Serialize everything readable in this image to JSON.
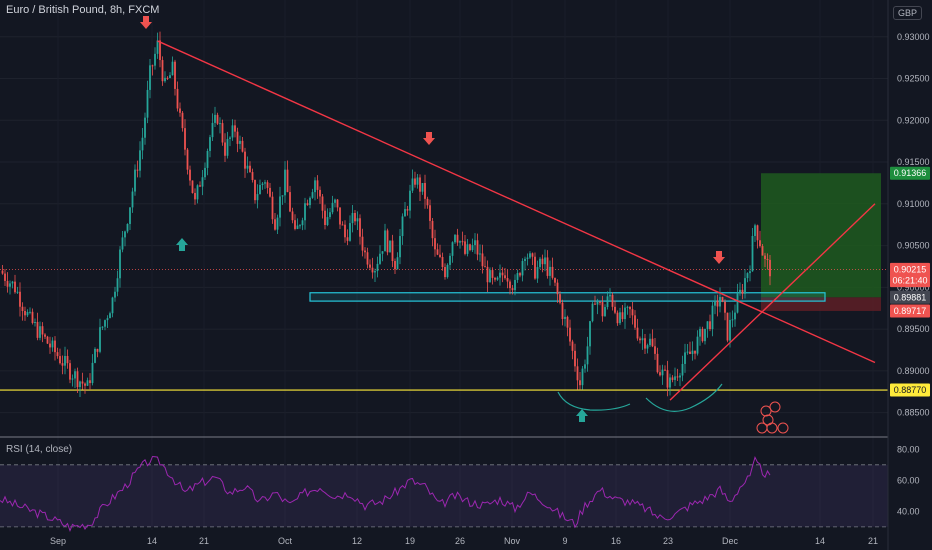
{
  "header": {
    "title": "Euro / British Pound, 8h, FXCM",
    "currency": "GBP"
  },
  "rsi_label": "RSI (14, close)",
  "colors": {
    "background": "#131722",
    "up": "#26a69a",
    "down": "#ef5350",
    "trendline": "#f23645",
    "support": "#ffeb3b",
    "zone": "#26c6da",
    "rsi": "#9c27b0",
    "target_box": "#1e5a1e",
    "stop_box": "#5a1e26"
  },
  "chart_data": {
    "type": "candlestick",
    "y_ticks": [
      "0.93000",
      "0.92500",
      "0.92000",
      "0.91500",
      "0.91000",
      "0.90500",
      "0.90000",
      "0.89500",
      "0.89000",
      "0.88500"
    ],
    "x_ticks": [
      "Sep",
      "14",
      "21",
      "Oct",
      "12",
      "19",
      "26",
      "Nov",
      "9",
      "16",
      "23",
      "Dec",
      "14",
      "21"
    ],
    "ylim": [
      0.8822,
      0.9344
    ],
    "price_labels": [
      {
        "text": "0.91366",
        "value": 0.91366,
        "color": "#1e8e3e"
      },
      {
        "text": "0.90215",
        "value": 0.90215,
        "color": "#ef5350"
      },
      {
        "text": "06:21:40",
        "value": 0.9008,
        "color": "#ef5350"
      },
      {
        "text": "0.89881",
        "value": 0.89881,
        "color": "#434651"
      },
      {
        "text": "0.89717",
        "value": 0.89717,
        "color": "#ef5350"
      },
      {
        "text": "0.88770",
        "value": 0.8877,
        "color": "#ffeb3b"
      }
    ],
    "series": [
      {
        "name": "price",
        "close_path": [
          [
            0,
            0.902
          ],
          [
            6,
            0.9
          ],
          [
            12,
            0.896
          ],
          [
            20,
            0.893
          ],
          [
            28,
            0.89
          ],
          [
            35,
            0.888
          ],
          [
            40,
            0.8945
          ],
          [
            45,
            0.8985
          ],
          [
            48,
            0.904
          ],
          [
            52,
            0.91
          ],
          [
            57,
            0.918
          ],
          [
            60,
            0.9255
          ],
          [
            63,
            0.929
          ],
          [
            66,
            0.924
          ],
          [
            69,
            0.926
          ],
          [
            72,
            0.92
          ],
          [
            75,
            0.915
          ],
          [
            78,
            0.91
          ],
          [
            81,
            0.914
          ],
          [
            84,
            0.918
          ],
          [
            87,
            0.9205
          ],
          [
            90,
            0.9165
          ],
          [
            94,
            0.919
          ],
          [
            98,
            0.915
          ],
          [
            102,
            0.911
          ],
          [
            106,
            0.913
          ],
          [
            110,
            0.908
          ],
          [
            114,
            0.913
          ],
          [
            118,
            0.906
          ],
          [
            122,
            0.91
          ],
          [
            126,
            0.913
          ],
          [
            130,
            0.908
          ],
          [
            134,
            0.91
          ],
          [
            138,
            0.906
          ],
          [
            142,
            0.9085
          ],
          [
            146,
            0.904
          ],
          [
            150,
            0.9025
          ],
          [
            154,
            0.906
          ],
          [
            158,
            0.903
          ],
          [
            162,
            0.909
          ],
          [
            166,
            0.913
          ],
          [
            170,
            0.911
          ],
          [
            174,
            0.904
          ],
          [
            178,
            0.902
          ],
          [
            182,
            0.907
          ],
          [
            186,
            0.904
          ],
          [
            190,
            0.905
          ],
          [
            194,
            0.902
          ],
          [
            198,
            0.9
          ],
          [
            202,
            0.902
          ],
          [
            206,
            0.9
          ],
          [
            210,
            0.9045
          ],
          [
            214,
            0.902
          ],
          [
            218,
            0.903
          ],
          [
            222,
            0.9
          ],
          [
            226,
            0.896
          ],
          [
            230,
            0.891
          ],
          [
            232,
            0.8885
          ],
          [
            235,
            0.893
          ],
          [
            238,
            0.899
          ],
          [
            241,
            0.897
          ],
          [
            244,
            0.899
          ],
          [
            248,
            0.896
          ],
          [
            252,
            0.897
          ],
          [
            256,
            0.894
          ],
          [
            260,
            0.8935
          ],
          [
            264,
            0.89
          ],
          [
            268,
            0.8885
          ],
          [
            272,
            0.8905
          ],
          [
            276,
            0.892
          ],
          [
            280,
            0.894
          ],
          [
            284,
            0.896
          ],
          [
            288,
            0.899
          ],
          [
            291,
            0.8945
          ],
          [
            294,
            0.8975
          ],
          [
            297,
            0.9
          ],
          [
            300,
            0.903
          ],
          [
            302,
            0.9075
          ],
          [
            304,
            0.9055
          ],
          [
            306,
            0.903
          ],
          [
            308,
            0.9022
          ]
        ]
      },
      {
        "name": "RSI",
        "values_path": [
          [
            0,
            48
          ],
          [
            10,
            42
          ],
          [
            20,
            36
          ],
          [
            28,
            30
          ],
          [
            36,
            32
          ],
          [
            42,
            44
          ],
          [
            50,
            56
          ],
          [
            56,
            68
          ],
          [
            60,
            73
          ],
          [
            64,
            72
          ],
          [
            68,
            64
          ],
          [
            74,
            52
          ],
          [
            80,
            58
          ],
          [
            86,
            62
          ],
          [
            92,
            52
          ],
          [
            98,
            56
          ],
          [
            104,
            46
          ],
          [
            110,
            52
          ],
          [
            116,
            44
          ],
          [
            122,
            52
          ],
          [
            128,
            56
          ],
          [
            134,
            50
          ],
          [
            140,
            52
          ],
          [
            146,
            44
          ],
          [
            152,
            46
          ],
          [
            158,
            52
          ],
          [
            164,
            60
          ],
          [
            170,
            56
          ],
          [
            176,
            44
          ],
          [
            182,
            50
          ],
          [
            188,
            46
          ],
          [
            194,
            44
          ],
          [
            200,
            48
          ],
          [
            206,
            42
          ],
          [
            212,
            52
          ],
          [
            218,
            46
          ],
          [
            224,
            38
          ],
          [
            230,
            32
          ],
          [
            234,
            44
          ],
          [
            240,
            54
          ],
          [
            246,
            48
          ],
          [
            252,
            46
          ],
          [
            258,
            42
          ],
          [
            264,
            36
          ],
          [
            270,
            38
          ],
          [
            276,
            44
          ],
          [
            282,
            48
          ],
          [
            288,
            54
          ],
          [
            292,
            46
          ],
          [
            296,
            56
          ],
          [
            300,
            62
          ],
          [
            302,
            72
          ],
          [
            305,
            66
          ],
          [
            308,
            62
          ]
        ]
      }
    ],
    "rsi_ticks": [
      "80.00",
      "60.00",
      "40.00"
    ],
    "rsi_levels": [
      70,
      30
    ],
    "annotations": {
      "trend_top_start": [
        63,
        0.9295
      ],
      "trend_top_end": [
        350,
        0.891
      ],
      "trend_support_start": [
        268,
        0.8865
      ],
      "trend_support_end": [
        350,
        0.91
      ],
      "support_level": 0.8877,
      "zone": [
        0.89835,
        0.89935
      ],
      "target_box": [
        0.8988,
        0.91366
      ],
      "stop_box": [
        0.89717,
        0.8988
      ]
    }
  }
}
